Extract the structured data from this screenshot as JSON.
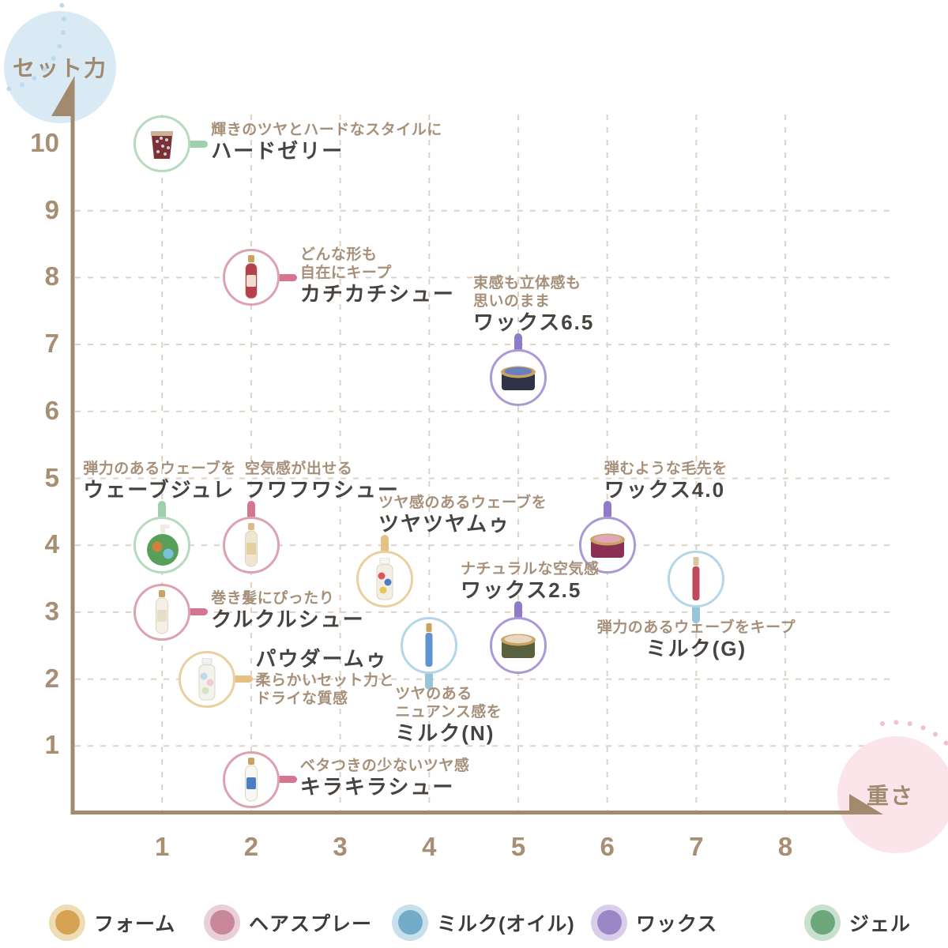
{
  "chart_data": {
    "type": "scatter",
    "xlabel": "重さ",
    "ylabel": "セット力",
    "xlim": [
      0,
      8.5
    ],
    "ylim": [
      0,
      10.5
    ],
    "x_ticks": [
      1,
      2,
      3,
      4,
      5,
      6,
      7,
      8
    ],
    "y_ticks": [
      1,
      2,
      3,
      4,
      5,
      6,
      7,
      8,
      9,
      10
    ],
    "grid": "dashed",
    "legend_position": "bottom",
    "points": [
      {
        "name": "ハードゼリー",
        "desc": [
          "輝きのツヤとハードなスタイルに"
        ],
        "x": 1,
        "y": 10,
        "category": "ジェル",
        "label_pos": "right",
        "glyph": "jar",
        "body": "#7e3034",
        "cap": "#c9b295",
        "spots": [
          "#bcd3e0"
        ]
      },
      {
        "name": "カチカチシュー",
        "desc": [
          "どんな形も",
          "自在にキープ"
        ],
        "x": 2,
        "y": 8,
        "category": "ヘアスプレー",
        "label_pos": "right",
        "glyph": "spray",
        "body": "#b4414b",
        "cap": "#caa45f",
        "spots": [
          "#f2ddd5"
        ]
      },
      {
        "name": "ワックス6.5",
        "desc": [
          "束感も立体感も",
          "思いのまま"
        ],
        "x": 5,
        "y": 6.5,
        "category": "ワックス",
        "label_pos": "above",
        "label_dx": -57,
        "glyph": "tin",
        "body": "#2e3345",
        "lid": "#6b7fc0",
        "cap": "#caa45f"
      },
      {
        "name": "ウェーブジュレ",
        "desc": [
          "弾力のあるウェーブを"
        ],
        "x": 1,
        "y": 4,
        "category": "ジェル",
        "label_pos": "above",
        "label_dx": -100,
        "glyph": "pump",
        "body": "#58a05a",
        "cap": "#efece4",
        "spots": [
          "#e07b3a",
          "#7ec4e8"
        ]
      },
      {
        "name": "フワフワシュー",
        "desc": [
          "空気感が出せる"
        ],
        "x": 2,
        "y": 4,
        "category": "ヘアスプレー",
        "label_pos": "above",
        "label_dx": -8,
        "glyph": "spray",
        "body": "#efe6cf",
        "cap": "#d9bd8a",
        "spots": [
          "#e3cf9f"
        ]
      },
      {
        "name": "ツヤツヤムゥ",
        "desc": [
          "ツヤ感のあるウェーブを"
        ],
        "x": 3.5,
        "y": 3.5,
        "category": "フォーム",
        "label_pos": "above",
        "label_dx": -8,
        "glyph": "bottle",
        "body": "#f2eee6",
        "cap": "#f7f5f0",
        "spots": [
          "#d8454f",
          "#3f6fc0",
          "#e8c33f"
        ]
      },
      {
        "name": "ワックス4.0",
        "desc": [
          "弾むような毛先を"
        ],
        "x": 6,
        "y": 4,
        "category": "ワックス",
        "label_pos": "above",
        "label_dx": -4,
        "glyph": "tin",
        "body": "#8c2f55",
        "lid": "#e0a7b8",
        "cap": "#caa45f"
      },
      {
        "name": "クルクルシュー",
        "desc": [
          "巻き髪にぴったり"
        ],
        "x": 1,
        "y": 3,
        "category": "ヘアスプレー",
        "label_pos": "right",
        "glyph": "spray",
        "body": "#f4f0e6",
        "cap": "#caa45f",
        "spots": [
          "#e8ddc5"
        ]
      },
      {
        "name": "ワックス2.5",
        "desc": [
          "ナチュラルな空気感"
        ],
        "x": 5,
        "y": 2.5,
        "category": "ワックス",
        "label_pos": "above",
        "label_dx": -73,
        "glyph": "tin",
        "body": "#59603c",
        "lid": "#e8d5c2",
        "cap": "#caa45f"
      },
      {
        "name": "ミルク(G)",
        "desc": [
          "弾力のあるウェーブをキープ"
        ],
        "x": 7,
        "y": 3.5,
        "category": "ミルク(オイル)",
        "label_pos": "below",
        "label_align": "center",
        "glyph": "tube",
        "body": "#c2485c",
        "cap": "#d9c49e"
      },
      {
        "name": "パウダームゥ",
        "desc": [
          "柔らかいセット力と",
          "ドライな質感"
        ],
        "x": 1.5,
        "y": 2,
        "category": "フォーム",
        "label_pos": "right",
        "name_first": true,
        "glyph": "bottle",
        "body": "#f3f2ee",
        "cap": "#eef0f2",
        "spots": [
          "#b9d6ea",
          "#f0c6d2",
          "#cfe3c0"
        ]
      },
      {
        "name": "ミルク(N)",
        "desc": [
          "ツヤのある",
          "ニュアンス感を"
        ],
        "x": 4,
        "y": 2.5,
        "category": "ミルク(オイル)",
        "label_pos": "below",
        "label_dx": -43,
        "glyph": "tube",
        "body": "#5f93cf",
        "cap": "#caa45f"
      },
      {
        "name": "キラキラシュー",
        "desc": [
          "ベタつきの少ないツヤ感"
        ],
        "x": 2,
        "y": 0.5,
        "category": "ヘアスプレー",
        "label_pos": "right",
        "glyph": "spray",
        "body": "#f8f7f4",
        "cap": "#caa45f",
        "spots": [
          "#4a7fc4"
        ]
      }
    ]
  },
  "categories": {
    "フォーム": {
      "ring": "#e9d0a0",
      "connector": "#e6c184",
      "dot": "#d6a254",
      "halo": "#efdcb4"
    },
    "ヘアスプレー": {
      "ring": "#dca2af",
      "connector": "#d5758f",
      "dot": "#c9879b",
      "halo": "#e9cfd8"
    },
    "ミルク(オイル)": {
      "ring": "#b4d6e6",
      "connector": "#96c4d9",
      "dot": "#72acc9",
      "halo": "#c8dfec"
    },
    "ワックス": {
      "ring": "#ab99d6",
      "connector": "#8f7cc9",
      "dot": "#9c87c6",
      "halo": "#d8cee9"
    },
    "ジェル": {
      "ring": "#b7dabf",
      "connector": "#9fd0ae",
      "dot": "#6ca87c",
      "halo": "#c9e0ce"
    }
  },
  "legend": {
    "items": [
      {
        "label": "フォーム"
      },
      {
        "label": "ヘアスプレー"
      },
      {
        "label": "ミルク(オイル)"
      },
      {
        "label": "ワックス"
      },
      {
        "label": "ジェル"
      }
    ]
  },
  "colors": {
    "axis": "#a28a6e",
    "grid": "#ded3c6",
    "tick_text": "#a68f73",
    "tagline_text": "#a6907a",
    "name_text": "#474341",
    "y_bubble": "#d9eaf4",
    "x_bubble": "#fbe4ea",
    "y_bubble_dots": "#b9dbec",
    "x_bubble_dots": "#f3c1cd"
  }
}
